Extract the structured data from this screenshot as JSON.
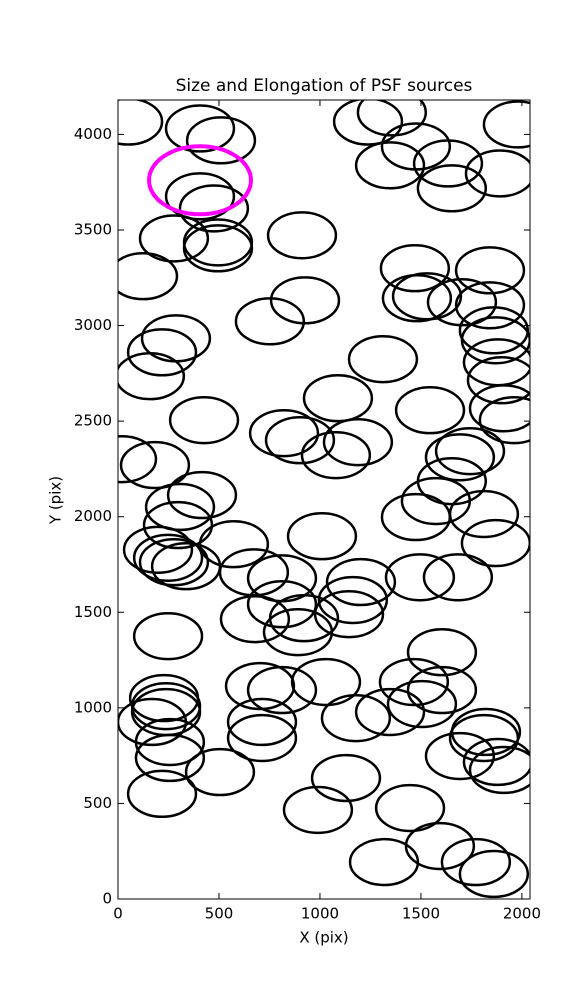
{
  "chart_data": {
    "type": "scatter",
    "title": "Size and Elongation of PSF sources",
    "xlabel": "X (pix)",
    "ylabel": "Y (pix)",
    "xlim": [
      0,
      2040
    ],
    "ylim": [
      0,
      4180
    ],
    "xticks": [
      0,
      500,
      1000,
      1500,
      2000
    ],
    "yticks": [
      0,
      500,
      1000,
      1500,
      2000,
      2500,
      3000,
      3500,
      4000
    ],
    "series": [
      {
        "color": "#000000",
        "width": 336,
        "height": 240,
        "x": [
          50,
          406,
          510,
          1238,
          1356,
          1475,
          1347,
          1634,
          1653,
          1980,
          1891,
          406,
          475,
          277,
          495,
          495,
          124,
          911,
          1470,
          1480,
          1530,
          1703,
          1842,
          1842,
          1861,
          1871,
          1881,
          1901,
          1911,
          1960,
          926,
          752,
          287,
          218,
          158,
          1312,
          1089,
          426,
          822,
          901,
          1079,
          1188,
          1545,
          20,
          183,
          1743,
          1693,
          1653,
          1574,
          1475,
          1812,
          1871,
          416,
          307,
          297,
          574,
          1010,
          198,
          248,
          277,
          337,
          673,
          812,
          1203,
          1163,
          1144,
          1495,
          1683,
          812,
          678,
          921,
          891,
          248,
          1604,
          1604,
          1465,
          1505,
          703,
          812,
          1030,
          1178,
          1347,
          228,
          238,
          238,
          168,
          257,
          257,
          713,
          713,
          505,
          1822,
          1812,
          1693,
          1881,
          1911,
          1129,
          218,
          990,
          1446,
          1317,
          1594,
          1772,
          1861
        ],
        "y": [
          4067,
          4031,
          3969,
          4067,
          4115,
          3937,
          3838,
          3848,
          3718,
          4052,
          3796,
          3676,
          3613,
          3456,
          3435,
          3404,
          3258,
          3472,
          3300,
          3143,
          3153,
          3122,
          3289,
          3106,
          2975,
          2923,
          2808,
          2714,
          2567,
          2505,
          3132,
          3022,
          2933,
          2860,
          2735,
          2824,
          2620,
          2505,
          2437,
          2400,
          2322,
          2390,
          2557,
          2301,
          2270,
          2343,
          2311,
          2186,
          2082,
          1998,
          2014,
          1862,
          2113,
          2051,
          1956,
          1856,
          1898,
          1827,
          1785,
          1762,
          1741,
          1709,
          1678,
          1658,
          1564,
          1490,
          1683,
          1683,
          1542,
          1464,
          1469,
          1396,
          1375,
          1291,
          1093,
          1135,
          1020,
          1114,
          1093,
          1135,
          946,
          978,
          1051,
          1009,
          978,
          926,
          821,
          738,
          926,
          842,
          664,
          874,
          842,
          748,
          717,
          675,
          633,
          550,
          466,
          476,
          193,
          277,
          193,
          131
        ]
      },
      {
        "color": "#ff00ff",
        "width": 505,
        "height": 356,
        "x": [
          406
        ],
        "y": [
          3760
        ]
      }
    ]
  }
}
